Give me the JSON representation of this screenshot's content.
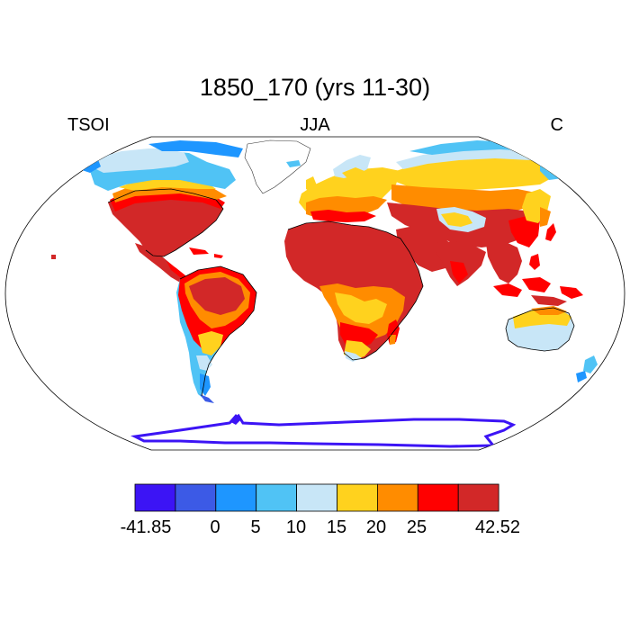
{
  "title": "1850_170 (yrs 11-30)",
  "left_label": "TSOI",
  "center_label": "JJA",
  "right_label": "C",
  "map": {
    "projection": "robinson",
    "ocean_color": "#ffffff",
    "outline_color": "#000000"
  },
  "colorbar": {
    "colors": [
      "#3c14f5",
      "#3c5ae6",
      "#1e96ff",
      "#50c3f5",
      "#c8e6f7",
      "#ffd21e",
      "#ff8c00",
      "#ff0000",
      "#d22828"
    ],
    "labels": [
      "-41.85",
      "0",
      "5",
      "10",
      "15",
      "20",
      "25",
      "42.52"
    ],
    "boundaries": [
      -41.85,
      -20,
      0,
      5,
      10,
      15,
      20,
      25,
      30,
      42.52
    ]
  }
}
